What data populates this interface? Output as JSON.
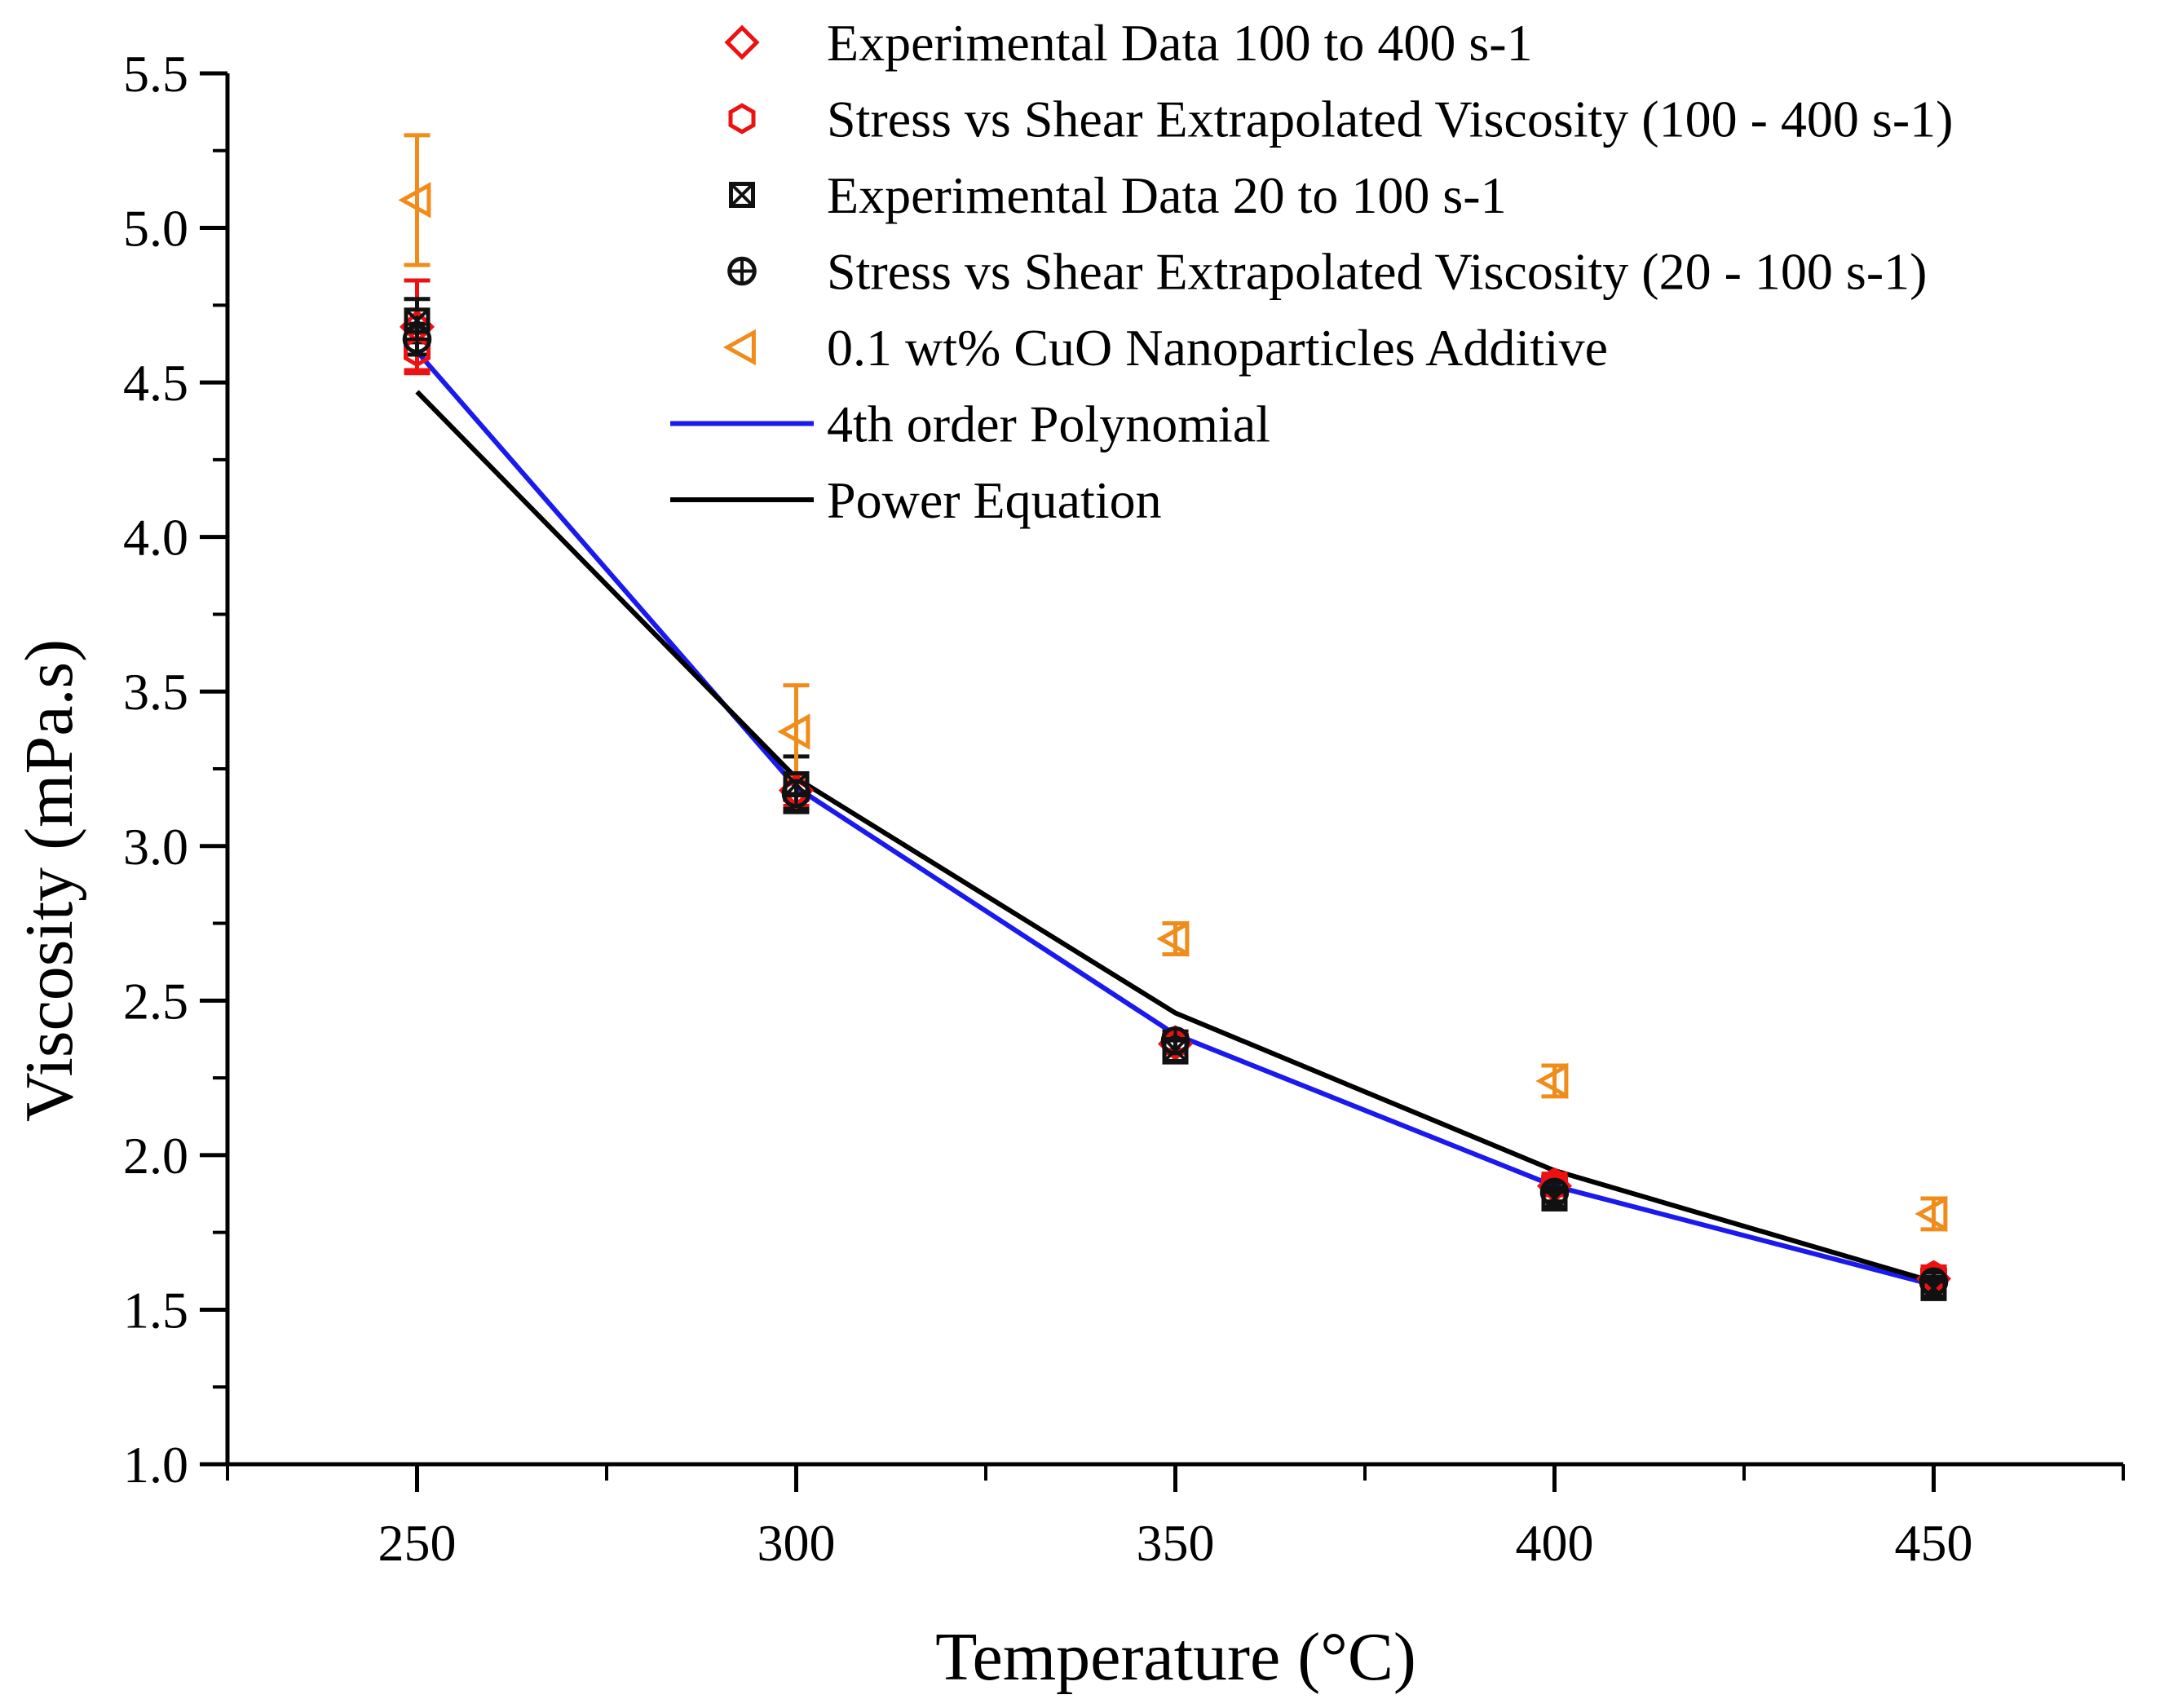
{
  "chart_data": {
    "type": "scatter",
    "xlabel": "Temperature (°C)",
    "ylabel": "Viscosity (mPa.s)",
    "xlim": [
      225,
      475
    ],
    "ylim": [
      1.0,
      5.5
    ],
    "x_ticks": [
      250,
      300,
      350,
      400,
      450
    ],
    "x_tick_labels": [
      "250",
      "300",
      "350",
      "400",
      "450"
    ],
    "y_ticks": [
      1.0,
      1.5,
      2.0,
      2.5,
      3.0,
      3.5,
      4.0,
      4.5,
      5.0,
      5.5
    ],
    "y_tick_labels": [
      "1.0",
      "1.5",
      "2.0",
      "2.5",
      "3.0",
      "3.5",
      "4.0",
      "4.5",
      "5.0",
      "5.5"
    ],
    "legend_position": "top-right",
    "series": [
      {
        "name": "Experimental Data 100 to 400 s-1",
        "marker": "diamond",
        "color": "#ee1111",
        "x": [
          250,
          300,
          350,
          400,
          450
        ],
        "y": [
          4.68,
          3.18,
          2.36,
          1.9,
          1.6
        ],
        "error": [
          0.15,
          0.05,
          0.03,
          0.03,
          0.03
        ]
      },
      {
        "name": "Stress vs Shear Extrapolated Viscosity (100 - 400 s-1)",
        "marker": "hexagon",
        "color": "#ee1111",
        "x": [
          250,
          300,
          350,
          400,
          450
        ],
        "y": [
          4.6,
          3.17,
          2.37,
          1.91,
          1.61
        ],
        "error": [
          0.06,
          0.04,
          0.03,
          0.03,
          0.03
        ]
      },
      {
        "name": "Experimental Data 20 to 100 s-1",
        "marker": "boxed-x",
        "color": "#111111",
        "x": [
          250,
          300,
          350,
          400,
          450
        ],
        "y": [
          4.7,
          3.2,
          2.34,
          1.86,
          1.57
        ],
        "error": [
          0.07,
          0.09,
          0.04,
          0.03,
          0.03
        ]
      },
      {
        "name": "Stress vs Shear Extrapolated Viscosity (20 - 100 s-1)",
        "marker": "circle-plus",
        "color": "#111111",
        "x": [
          250,
          300,
          350,
          400,
          450
        ],
        "y": [
          4.64,
          3.17,
          2.37,
          1.88,
          1.59
        ],
        "error": [
          0.05,
          0.05,
          0.03,
          0.03,
          0.03
        ]
      },
      {
        "name": "0.1 wt% CuO Nanoparticles Additive",
        "marker": "triangle-left",
        "color": "#f08c1a",
        "x": [
          250,
          300,
          350,
          400,
          450
        ],
        "y": [
          5.09,
          3.37,
          2.7,
          2.24,
          1.81
        ],
        "error": [
          0.21,
          0.15,
          0.05,
          0.05,
          0.05
        ]
      },
      {
        "name": "4th order Polynomial",
        "marker": "line",
        "color": "#1a1aee",
        "x": [
          250,
          300,
          350,
          400,
          450
        ],
        "y": [
          4.6,
          3.19,
          2.39,
          1.9,
          1.58
        ]
      },
      {
        "name": "Power Equation",
        "marker": "line",
        "color": "#000000",
        "x": [
          250,
          300,
          350,
          400,
          450
        ],
        "y": [
          4.47,
          3.22,
          2.46,
          1.95,
          1.59
        ]
      }
    ]
  }
}
